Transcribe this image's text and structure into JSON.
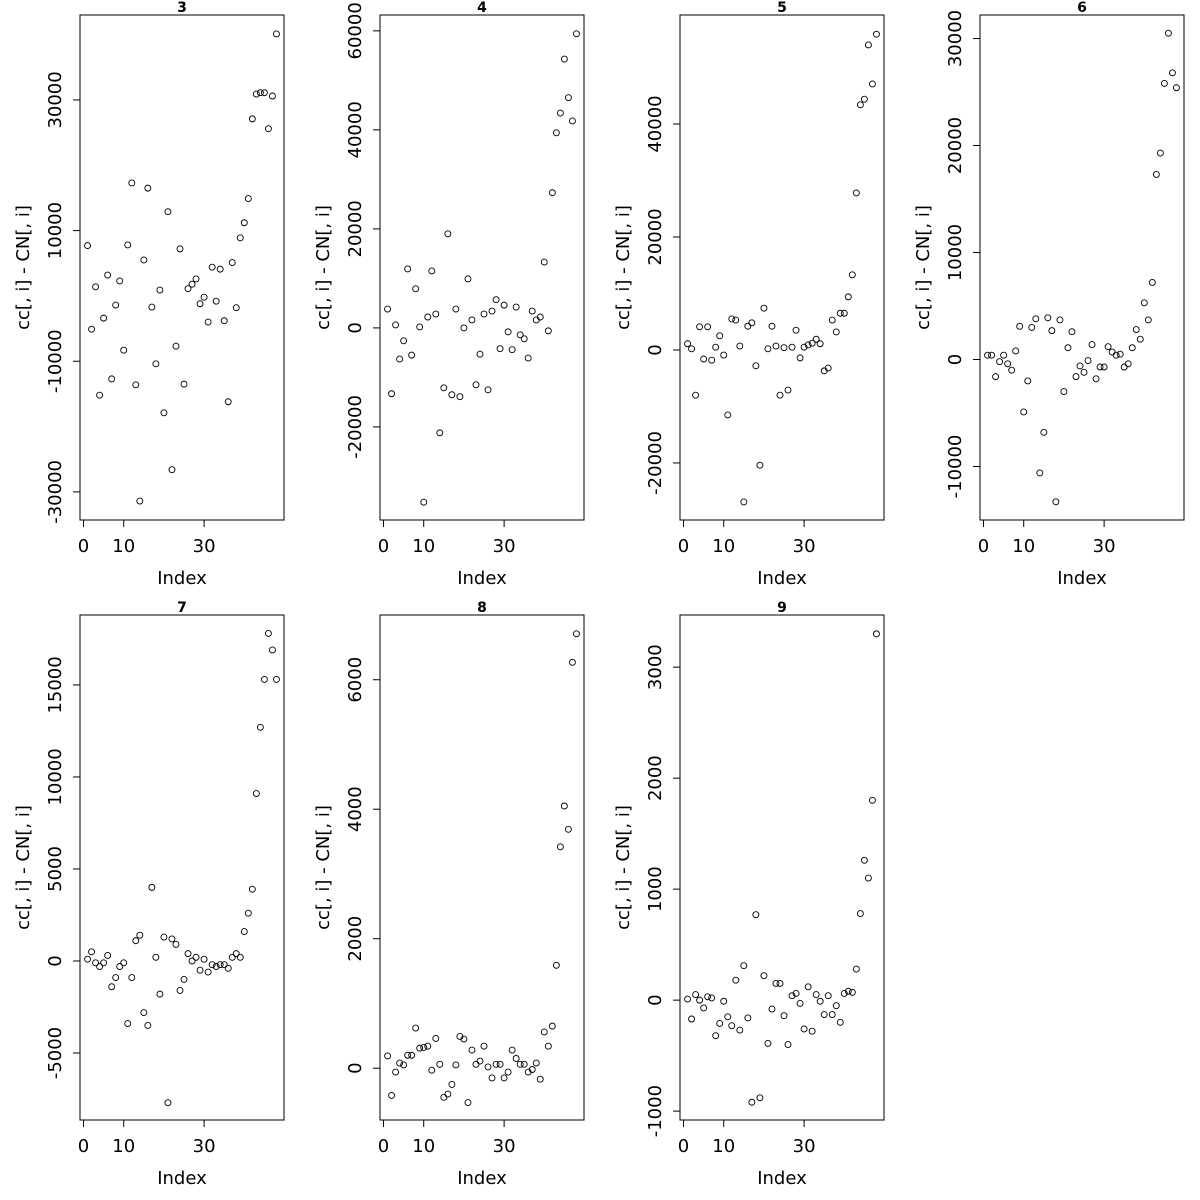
{
  "chart_data": [
    {
      "type": "scatter",
      "title": "3",
      "xlabel": "Index",
      "ylabel": "cc[, i] - CN[, i]",
      "color": "#000000",
      "x": [
        1,
        2,
        3,
        4,
        5,
        6,
        7,
        8,
        9,
        10,
        11,
        12,
        13,
        14,
        15,
        16,
        17,
        18,
        19,
        20,
        21,
        22,
        23,
        24,
        25,
        26,
        27,
        28,
        29,
        30,
        31,
        32,
        33,
        34,
        35,
        36,
        37,
        38,
        39,
        40,
        41,
        42,
        43,
        44,
        45,
        46,
        47,
        48
      ],
      "values": [
        7700,
        -5100,
        1400,
        -15200,
        -3400,
        3200,
        -12700,
        -1400,
        2300,
        -8300,
        7800,
        17300,
        -13600,
        -31400,
        5500,
        16500,
        -1700,
        -10400,
        900,
        -17900,
        12900,
        -26600,
        -7700,
        7200,
        -13500,
        1100,
        1800,
        2600,
        -1200,
        -200,
        -4000,
        4400,
        -800,
        4100,
        -3800,
        -16200,
        5100,
        -1800,
        8900,
        11200,
        14900,
        27100,
        30900,
        31100,
        31100,
        25600,
        30600,
        40100
      ],
      "xlim": [
        -0.88,
        49.88
      ],
      "xticks": [
        0,
        10,
        30
      ],
      "ylim": [
        -34300,
        43000
      ],
      "yticks": [
        -30000,
        -10000,
        10000,
        30000
      ]
    },
    {
      "type": "scatter",
      "title": "4",
      "xlabel": "Index",
      "ylabel": "cc[, i] - CN[, i]",
      "color": "#000000",
      "x": [
        1,
        2,
        3,
        4,
        5,
        6,
        7,
        8,
        9,
        10,
        11,
        12,
        13,
        14,
        15,
        16,
        17,
        18,
        19,
        20,
        21,
        22,
        23,
        24,
        25,
        26,
        27,
        28,
        29,
        30,
        31,
        32,
        33,
        34,
        35,
        36,
        37,
        38,
        39,
        40,
        41,
        42,
        43,
        44,
        45,
        46,
        47,
        48
      ],
      "values": [
        3800,
        -13300,
        600,
        -6300,
        -2600,
        11900,
        -5500,
        7900,
        200,
        -35200,
        2200,
        11500,
        2800,
        -21200,
        -12100,
        19000,
        -13500,
        3800,
        -13900,
        0,
        9900,
        1600,
        -11500,
        -5300,
        2800,
        -12500,
        3400,
        5700,
        -4200,
        4600,
        -800,
        -4400,
        4200,
        -1400,
        -2200,
        -6100,
        3400,
        1600,
        2200,
        13300,
        -600,
        27300,
        39400,
        43400,
        54300,
        46500,
        41800,
        59400
      ],
      "xlim": [
        -0.88,
        49.88
      ],
      "xticks": [
        0,
        10,
        30
      ],
      "ylim": [
        -38800,
        63200
      ],
      "yticks": [
        -20000,
        0,
        20000,
        40000,
        60000
      ]
    },
    {
      "type": "scatter",
      "title": "5",
      "xlabel": "Index",
      "ylabel": "cc[, i] - CN[, i]",
      "color": "#000000",
      "x": [
        1,
        2,
        3,
        4,
        5,
        6,
        7,
        8,
        9,
        10,
        11,
        12,
        13,
        14,
        15,
        16,
        17,
        18,
        19,
        20,
        21,
        22,
        23,
        24,
        25,
        26,
        27,
        28,
        29,
        30,
        31,
        32,
        33,
        34,
        35,
        36,
        37,
        38,
        39,
        40,
        41,
        42,
        43,
        44,
        45,
        46,
        47,
        48
      ],
      "values": [
        1100,
        200,
        -8000,
        4100,
        -1600,
        4100,
        -1800,
        500,
        2500,
        -900,
        -11500,
        5500,
        5300,
        700,
        -26900,
        4200,
        4800,
        -2800,
        -20400,
        7400,
        200,
        4200,
        700,
        -8000,
        400,
        -7100,
        500,
        3500,
        -1400,
        500,
        900,
        1200,
        1900,
        1100,
        -3700,
        -3200,
        5300,
        3200,
        6500,
        6500,
        9400,
        13300,
        27800,
        43400,
        44400,
        54000,
        47100,
        55900
      ],
      "xlim": [
        -0.88,
        49.88
      ],
      "xticks": [
        0,
        10,
        30
      ],
      "ylim": [
        -30100,
        59300
      ],
      "yticks": [
        -20000,
        0,
        20000,
        40000
      ]
    },
    {
      "type": "scatter",
      "title": "6",
      "xlabel": "Index",
      "ylabel": "cc[, i] - CN[, i]",
      "color": "#000000",
      "x": [
        1,
        2,
        3,
        4,
        5,
        6,
        7,
        8,
        9,
        10,
        11,
        12,
        13,
        14,
        15,
        16,
        17,
        18,
        19,
        20,
        21,
        22,
        23,
        24,
        25,
        26,
        27,
        28,
        29,
        30,
        31,
        32,
        33,
        34,
        35,
        36,
        37,
        38,
        39,
        40,
        41,
        42,
        43,
        44,
        45,
        46,
        47,
        48
      ],
      "values": [
        400,
        400,
        -1600,
        -200,
        400,
        -400,
        -1000,
        800,
        3100,
        -4900,
        -2000,
        3000,
        3800,
        -10600,
        -6800,
        3900,
        2700,
        -13300,
        3700,
        -3000,
        1100,
        2600,
        -1600,
        -600,
        -1200,
        -100,
        1400,
        -1800,
        -700,
        -700,
        1200,
        700,
        400,
        500,
        -700,
        -400,
        1100,
        2800,
        1900,
        5300,
        3700,
        7200,
        17300,
        19300,
        25800,
        30500,
        26800,
        25400
      ],
      "xlim": [
        -0.88,
        49.88
      ],
      "xticks": [
        0,
        10,
        30
      ],
      "ylim": [
        -15000,
        32200
      ],
      "yticks": [
        -10000,
        0,
        10000,
        20000,
        30000
      ]
    },
    {
      "type": "scatter",
      "title": "7",
      "xlabel": "Index",
      "ylabel": "cc[, i] - CN[, i]",
      "color": "#000000",
      "x": [
        1,
        2,
        3,
        4,
        5,
        6,
        7,
        8,
        9,
        10,
        11,
        12,
        13,
        14,
        15,
        16,
        17,
        18,
        19,
        20,
        21,
        22,
        23,
        24,
        25,
        26,
        27,
        28,
        29,
        30,
        31,
        32,
        33,
        34,
        35,
        36,
        37,
        38,
        39,
        40,
        41,
        42,
        43,
        44,
        45,
        46,
        47,
        48
      ],
      "values": [
        100,
        500,
        -100,
        -300,
        -100,
        300,
        -1400,
        -900,
        -300,
        -100,
        -3400,
        -900,
        1100,
        1400,
        -2800,
        -3500,
        4000,
        200,
        -1800,
        1300,
        -7700,
        1200,
        900,
        -1600,
        -1000,
        400,
        0,
        200,
        -500,
        100,
        -600,
        -200,
        -300,
        -200,
        -200,
        -400,
        200,
        400,
        200,
        1600,
        2600,
        3900,
        9100,
        12700,
        15300,
        17800,
        16900,
        15300
      ],
      "xlim": [
        -0.88,
        49.88
      ],
      "xticks": [
        0,
        10,
        30
      ],
      "ylim": [
        -8640,
        18800
      ],
      "yticks": [
        -5000,
        0,
        5000,
        10000,
        15000
      ]
    },
    {
      "type": "scatter",
      "title": "8",
      "xlabel": "Index",
      "ylabel": "cc[, i] - CN[, i]",
      "color": "#000000",
      "x": [
        1,
        2,
        3,
        4,
        5,
        6,
        7,
        8,
        9,
        10,
        11,
        12,
        13,
        14,
        15,
        16,
        17,
        18,
        19,
        20,
        21,
        22,
        23,
        24,
        25,
        26,
        27,
        28,
        29,
        30,
        31,
        32,
        33,
        34,
        35,
        36,
        37,
        38,
        39,
        40,
        41,
        42,
        43,
        44,
        45,
        46,
        47,
        48
      ],
      "values": [
        190,
        -420,
        -60,
        80,
        50,
        200,
        200,
        620,
        310,
        320,
        340,
        -30,
        460,
        60,
        -450,
        -400,
        -250,
        50,
        490,
        450,
        -530,
        280,
        60,
        110,
        340,
        20,
        -150,
        60,
        60,
        -150,
        -60,
        280,
        150,
        60,
        60,
        -60,
        -20,
        80,
        -170,
        560,
        340,
        650,
        1590,
        3420,
        4050,
        3690,
        6270,
        6710
      ],
      "xlim": [
        -0.88,
        49.88
      ],
      "xticks": [
        0,
        10,
        30
      ],
      "ylim": [
        -800,
        7000
      ],
      "yticks": [
        0,
        2000,
        4000,
        6000
      ]
    },
    {
      "type": "scatter",
      "title": "9",
      "xlabel": "Index",
      "ylabel": "cc[, i] - CN[, i]",
      "color": "#000000",
      "x": [
        1,
        2,
        3,
        4,
        5,
        6,
        7,
        8,
        9,
        10,
        11,
        12,
        13,
        14,
        15,
        16,
        17,
        18,
        19,
        20,
        21,
        22,
        23,
        24,
        25,
        26,
        27,
        28,
        29,
        30,
        31,
        32,
        33,
        34,
        35,
        36,
        37,
        38,
        39,
        40,
        41,
        42,
        43,
        44,
        45,
        46,
        47,
        48
      ],
      "values": [
        10,
        -170,
        50,
        0,
        -70,
        30,
        20,
        -320,
        -210,
        -10,
        -150,
        -230,
        180,
        -270,
        310,
        -160,
        -920,
        770,
        -880,
        220,
        -390,
        -80,
        150,
        150,
        -140,
        -400,
        40,
        60,
        -30,
        -260,
        120,
        -280,
        50,
        -10,
        -130,
        40,
        -130,
        -50,
        -200,
        60,
        80,
        70,
        280,
        780,
        1260,
        1100,
        1800,
        3300
      ],
      "xlim": [
        -0.88,
        49.88
      ],
      "xticks": [
        0,
        10,
        30
      ],
      "ylim": [
        -1080,
        3470
      ],
      "yticks": [
        -1000,
        0,
        1000,
        2000,
        3000
      ]
    }
  ]
}
